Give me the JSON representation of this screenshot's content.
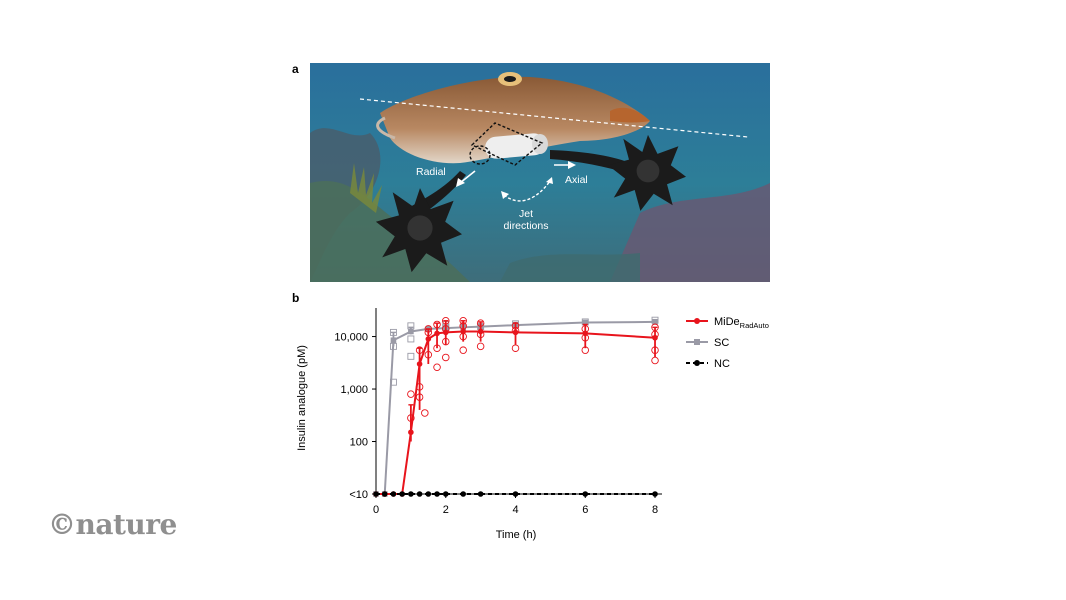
{
  "panels": {
    "a_label": "a",
    "b_label": "b"
  },
  "photo": {
    "labels": {
      "radial": "Radial",
      "axial": "Axial",
      "jet_line1": "Jet",
      "jet_line2": "directions"
    }
  },
  "brand": {
    "text": "©nature"
  },
  "colors": {
    "mide": "#e8141c",
    "sc": "#9a9aa6",
    "nc": "#000000"
  },
  "chart_data": {
    "type": "line",
    "xlabel": "Time (h)",
    "ylabel": "Insulin analogue (pM)",
    "x_ticks": [
      0,
      2,
      4,
      6,
      8
    ],
    "y_ticks": [
      {
        "value": 10,
        "label": "<10"
      },
      {
        "value": 100,
        "label": "100"
      },
      {
        "value": 1000,
        "label": "1,000"
      },
      {
        "value": 10000,
        "label": "10,000"
      }
    ],
    "y_scale": "log",
    "xlim": [
      0,
      8.2
    ],
    "ylim": [
      10,
      35000
    ],
    "legend_position": "right",
    "series": [
      {
        "name": "MiDe",
        "name_sub": "RadAuto",
        "color": "#e8141c",
        "marker": "circle",
        "mean": [
          [
            0,
            10
          ],
          [
            0.25,
            10
          ],
          [
            0.5,
            10
          ],
          [
            0.75,
            10
          ],
          [
            1,
            150
          ],
          [
            1.25,
            3000
          ],
          [
            1.5,
            9000
          ],
          [
            1.75,
            11500
          ],
          [
            2,
            12000
          ],
          [
            2.5,
            12500
          ],
          [
            3,
            12500
          ],
          [
            4,
            12000
          ],
          [
            6,
            11500
          ],
          [
            8,
            9500
          ]
        ],
        "err_low": [
          10,
          10,
          10,
          10,
          100,
          400,
          3000,
          6000,
          7000,
          8000,
          8000,
          7000,
          6000,
          4000
        ],
        "err_high": [
          10,
          10,
          10,
          10,
          500,
          6000,
          14000,
          18000,
          20000,
          20000,
          19000,
          18000,
          17000,
          15000
        ],
        "points": [
          [
            1,
            280
          ],
          [
            1,
            800
          ],
          [
            1.25,
            700
          ],
          [
            1.25,
            1100
          ],
          [
            1.25,
            5500
          ],
          [
            1.4,
            350
          ],
          [
            1.5,
            4500
          ],
          [
            1.5,
            12000
          ],
          [
            1.5,
            14000
          ],
          [
            1.75,
            2600
          ],
          [
            1.75,
            6000
          ],
          [
            1.75,
            17000
          ],
          [
            2,
            4000
          ],
          [
            2,
            8000
          ],
          [
            2,
            14000
          ],
          [
            2,
            20000
          ],
          [
            2.5,
            5500
          ],
          [
            2.5,
            10000
          ],
          [
            2.5,
            16000
          ],
          [
            2.5,
            20000
          ],
          [
            3,
            6500
          ],
          [
            3,
            11000
          ],
          [
            3,
            18000
          ],
          [
            4,
            6000
          ],
          [
            4,
            13000
          ],
          [
            4,
            16000
          ],
          [
            6,
            5500
          ],
          [
            6,
            9500
          ],
          [
            6,
            14000
          ],
          [
            8,
            3500
          ],
          [
            8,
            5500
          ],
          [
            8,
            11000
          ],
          [
            8,
            15000
          ]
        ]
      },
      {
        "name": "SC",
        "color": "#9a9aa6",
        "marker": "square",
        "mean": [
          [
            0,
            10
          ],
          [
            0.25,
            10
          ],
          [
            0.5,
            8500
          ],
          [
            1,
            12500
          ],
          [
            1.5,
            14000
          ],
          [
            2,
            14500
          ],
          [
            2.5,
            15000
          ],
          [
            3,
            15500
          ],
          [
            4,
            16500
          ],
          [
            6,
            18500
          ],
          [
            8,
            19000
          ]
        ],
        "err_low": [
          10,
          10,
          6500,
          11000,
          13000,
          13500,
          14000,
          14500,
          15000,
          17000,
          17500
        ],
        "err_high": [
          10,
          10,
          12000,
          15000,
          15500,
          16000,
          17000,
          17000,
          18500,
          20000,
          21000
        ],
        "points": [
          [
            0.5,
            1350
          ],
          [
            0.5,
            6500
          ],
          [
            0.5,
            12000
          ],
          [
            1,
            4200
          ],
          [
            1,
            9000
          ],
          [
            1,
            16000
          ],
          [
            2,
            15000
          ],
          [
            2,
            17000
          ],
          [
            3,
            15500
          ],
          [
            4,
            17500
          ],
          [
            6,
            19000
          ],
          [
            8,
            20500
          ]
        ]
      },
      {
        "name": "NC",
        "color": "#000000",
        "marker": "circle",
        "dashed": true,
        "mean": [
          [
            0,
            10
          ],
          [
            0.25,
            10
          ],
          [
            0.5,
            10
          ],
          [
            0.75,
            10
          ],
          [
            1,
            10
          ],
          [
            1.25,
            10
          ],
          [
            1.5,
            10
          ],
          [
            1.75,
            10
          ],
          [
            2,
            10
          ],
          [
            2.5,
            10
          ],
          [
            3,
            10
          ],
          [
            4,
            10
          ],
          [
            6,
            10
          ],
          [
            8,
            10
          ]
        ]
      }
    ]
  }
}
